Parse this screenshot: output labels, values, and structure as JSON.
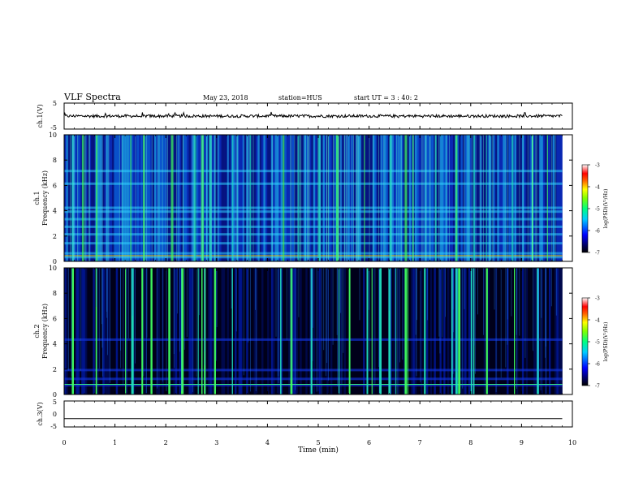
{
  "header": {
    "title": "VLF Spectra",
    "date": "May 23, 2018",
    "station": "station=HUS",
    "start": "start UT =  3 : 40: 2"
  },
  "chart_data": [
    {
      "type": "line",
      "panel": "ch1-waveform",
      "ylabel": "ch.1(V)",
      "ylim": [
        -5,
        5
      ],
      "yticks": [
        "5",
        "-5"
      ],
      "description_of_signal": "noisy baseline near 0 V with small spikes",
      "x_range_min": [
        0,
        9.8
      ],
      "baseline_v": 0
    },
    {
      "type": "heatmap",
      "panel": "ch1-spectrogram",
      "ylabel": "ch.1\nFrequency (kHz)",
      "ylim": [
        0,
        10
      ],
      "yticks": [
        "0",
        "2",
        "4",
        "6",
        "8",
        "10"
      ],
      "xlim": [
        0,
        10
      ],
      "data_extent_min": 9.8,
      "colorbar": {
        "label": "log(PSD)(V²/Hz)",
        "ticks": [
          "-3",
          "-4",
          "-5",
          "-6",
          "-7"
        ],
        "range": [
          -7,
          -3
        ]
      },
      "background_level": -6.2,
      "horizontal_bands_khz": [
        0.3,
        0.6,
        1.4,
        2.1,
        2.7,
        3.3,
        3.9,
        4.2,
        6.1,
        7.1
      ],
      "impulsive_events_min": [
        0.15,
        0.35,
        0.62,
        1.3,
        1.55,
        2.1,
        2.55,
        2.7,
        2.85,
        3.3,
        3.65,
        4.3,
        4.6,
        5.0,
        5.35,
        5.9,
        6.4,
        6.7,
        6.85,
        7.3,
        7.7,
        8.05,
        8.3,
        8.8,
        9.2,
        9.5
      ]
    },
    {
      "type": "heatmap",
      "panel": "ch2-spectrogram",
      "ylabel": "ch.2\nFrequency (kHz)",
      "ylim": [
        0,
        10
      ],
      "yticks": [
        "0",
        "2",
        "4",
        "6",
        "8",
        "10"
      ],
      "xlim": [
        0,
        10
      ],
      "data_extent_min": 9.8,
      "colorbar": {
        "label": "log(PSD)(V²/Hz)",
        "ticks": [
          "-3",
          "-4",
          "-5",
          "-6",
          "-7"
        ],
        "range": [
          -7,
          -3
        ]
      },
      "background_level": -7,
      "horizontal_bands_khz": [
        0.7,
        1.2,
        1.9,
        4.3
      ],
      "impulsive_events_min": [
        0.15,
        0.62,
        1.2,
        1.32,
        1.52,
        1.7,
        2.05,
        2.3,
        2.63,
        2.7,
        2.75,
        2.95,
        3.3,
        4.25,
        4.45,
        4.85,
        5.4,
        5.6,
        5.95,
        6.05,
        6.2,
        6.38,
        6.52,
        6.7,
        6.75,
        7.08,
        7.62,
        7.7,
        7.75,
        8.0,
        8.05,
        8.3,
        8.85,
        9.3
      ]
    },
    {
      "type": "line",
      "panel": "ch3-waveform",
      "ylabel": "ch.3(V)",
      "ylim": [
        -5,
        5
      ],
      "yticks": [
        "5",
        "0",
        "-5"
      ],
      "xlabel": "Time (min)",
      "xticks": [
        "0",
        "1",
        "2",
        "3",
        "4",
        "5",
        "6",
        "7",
        "8",
        "9",
        "10"
      ],
      "xlim": [
        0,
        10
      ],
      "baseline_v": -1.8,
      "x_range_min": [
        0,
        9.8
      ]
    }
  ]
}
